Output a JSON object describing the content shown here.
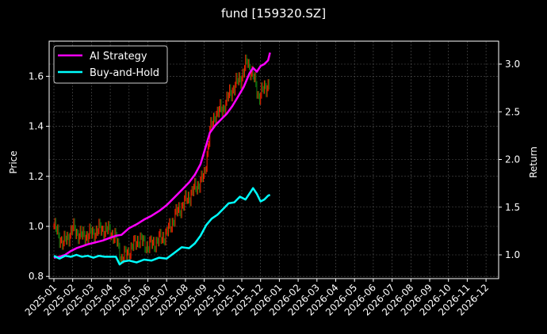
{
  "chart_data": {
    "type": "line",
    "title": "fund [159320.SZ]",
    "xlabel": "",
    "ylabel": "Price",
    "ylabel_right": "Return",
    "x_ticks": [
      "2025-01",
      "2025-02",
      "2025-03",
      "2025-04",
      "2025-05",
      "2025-06",
      "2025-07",
      "2025-08",
      "2025-09",
      "2025-10",
      "2025-11",
      "2025-12",
      "2026-01",
      "2026-02",
      "2026-03",
      "2026-04",
      "2026-05",
      "2026-06",
      "2026-07",
      "2026-08",
      "2026-09",
      "2026-10",
      "2026-11",
      "2026-12"
    ],
    "y_ticks_left": [
      "0.8",
      "1.0",
      "1.2",
      "1.4",
      "1.6"
    ],
    "y_ticks_right": [
      "1.0",
      "1.5",
      "2.0",
      "2.5",
      "3.0"
    ],
    "ylim_left": [
      0.79,
      1.74
    ],
    "ylim_right": [
      0.78,
      3.2
    ],
    "grid": true,
    "legend_position": "upper left",
    "colors": {
      "background": "#000000",
      "ai_strategy": "#ff00ff",
      "buy_and_hold": "#00ffff",
      "candle_up": "#ff2000",
      "candle_down": "#108010",
      "grid": "#555555",
      "frame": "#ffffff"
    },
    "series": [
      {
        "name": "AI Strategy",
        "axis": "right",
        "x_months": [
          0.0,
          0.3,
          0.6,
          0.9,
          1.2,
          1.5,
          1.8,
          2.2,
          2.6,
          3.0,
          3.3,
          3.6,
          4.0,
          4.4,
          4.8,
          5.2,
          5.6,
          6.0,
          6.4,
          6.8,
          7.2,
          7.5,
          7.8,
          8.0,
          8.3,
          8.6,
          8.9,
          9.2,
          9.5,
          9.8,
          10.1,
          10.4,
          10.6,
          10.8,
          11.0,
          11.2,
          11.4,
          11.5
        ],
        "values": [
          0.97,
          0.98,
          1.0,
          1.04,
          1.07,
          1.09,
          1.11,
          1.13,
          1.15,
          1.18,
          1.2,
          1.21,
          1.28,
          1.32,
          1.37,
          1.41,
          1.46,
          1.52,
          1.6,
          1.68,
          1.76,
          1.84,
          1.95,
          2.08,
          2.28,
          2.36,
          2.42,
          2.48,
          2.56,
          2.66,
          2.76,
          2.9,
          2.96,
          2.92,
          2.98,
          3.0,
          3.04,
          3.12
        ]
      },
      {
        "name": "Buy-and-Hold",
        "axis": "right",
        "x_months": [
          0.0,
          0.3,
          0.6,
          0.9,
          1.2,
          1.5,
          1.8,
          2.1,
          2.4,
          2.7,
          3.0,
          3.3,
          3.5,
          3.7,
          4.0,
          4.4,
          4.8,
          5.2,
          5.6,
          6.0,
          6.4,
          6.8,
          7.2,
          7.5,
          7.8,
          8.1,
          8.4,
          8.7,
          9.0,
          9.3,
          9.6,
          9.9,
          10.2,
          10.5,
          10.6,
          10.8,
          11.0,
          11.2,
          11.4,
          11.5
        ],
        "values": [
          0.99,
          0.96,
          0.99,
          0.98,
          1.0,
          0.98,
          0.99,
          0.97,
          0.99,
          0.98,
          0.98,
          0.98,
          0.9,
          0.93,
          0.94,
          0.92,
          0.95,
          0.94,
          0.97,
          0.96,
          1.02,
          1.08,
          1.07,
          1.12,
          1.2,
          1.31,
          1.38,
          1.42,
          1.48,
          1.54,
          1.55,
          1.61,
          1.58,
          1.67,
          1.7,
          1.64,
          1.56,
          1.58,
          1.62,
          1.63
        ]
      },
      {
        "name": "Price (candlesticks)",
        "axis": "left",
        "x_months": [
          0.0,
          0.5,
          1.0,
          1.5,
          2.0,
          2.5,
          3.0,
          3.3,
          3.6,
          4.0,
          4.5,
          5.0,
          5.5,
          6.0,
          6.5,
          7.0,
          7.5,
          8.0,
          8.3,
          8.6,
          9.0,
          9.3,
          9.6,
          10.0,
          10.3,
          10.6,
          10.9,
          11.2,
          11.5
        ],
        "values": [
          1.0,
          0.93,
          0.99,
          0.96,
          0.97,
          0.99,
          0.98,
          0.95,
          0.87,
          0.9,
          0.95,
          0.92,
          0.94,
          0.97,
          1.05,
          1.1,
          1.15,
          1.2,
          1.38,
          1.45,
          1.47,
          1.52,
          1.56,
          1.6,
          1.66,
          1.6,
          1.52,
          1.55,
          1.58
        ]
      }
    ]
  },
  "legend": {
    "items": [
      {
        "label": "AI Strategy",
        "color": "#ff00ff"
      },
      {
        "label": "Buy-and-Hold",
        "color": "#00ffff"
      }
    ]
  }
}
